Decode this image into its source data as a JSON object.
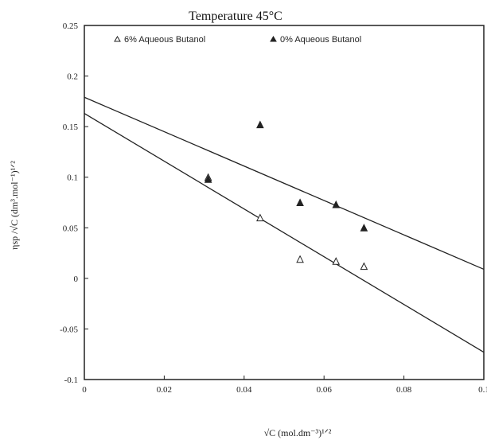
{
  "chart_data": {
    "type": "scatter",
    "title": "Temperature 45°C",
    "xlabel": "√C  (mol.dm⁻³)¹ᐟ²",
    "ylabel": "ηsp /√C  (dm³.mol⁻¹)¹ᐟ²",
    "xlim": [
      0,
      0.1
    ],
    "ylim": [
      -0.1,
      0.25
    ],
    "x_ticks": [
      "0",
      "0.02",
      "0.04",
      "0.06",
      "0.08",
      "0.1"
    ],
    "y_ticks": [
      "-0.1",
      "-0.05",
      "0",
      "0.05",
      "0.1",
      "0.15",
      "0.2",
      "0.25"
    ],
    "legend_position": "top",
    "series": [
      {
        "name": "6% Aqueous Butanol",
        "marker": "open-triangle",
        "points": [
          [
            0.031,
            0.1
          ],
          [
            0.044,
            0.06
          ],
          [
            0.054,
            0.019
          ],
          [
            0.063,
            0.017
          ],
          [
            0.07,
            0.012
          ]
        ],
        "fit_line": [
          [
            0,
            0.163
          ],
          [
            0.1,
            -0.073
          ]
        ]
      },
      {
        "name": "0% Aqueous Butanol",
        "marker": "filled-triangle",
        "points": [
          [
            0.031,
            0.098
          ],
          [
            0.044,
            0.152
          ],
          [
            0.054,
            0.075
          ],
          [
            0.063,
            0.073
          ],
          [
            0.07,
            0.05
          ]
        ],
        "fit_line": [
          [
            0,
            0.179
          ],
          [
            0.1,
            0.009
          ]
        ]
      }
    ]
  }
}
